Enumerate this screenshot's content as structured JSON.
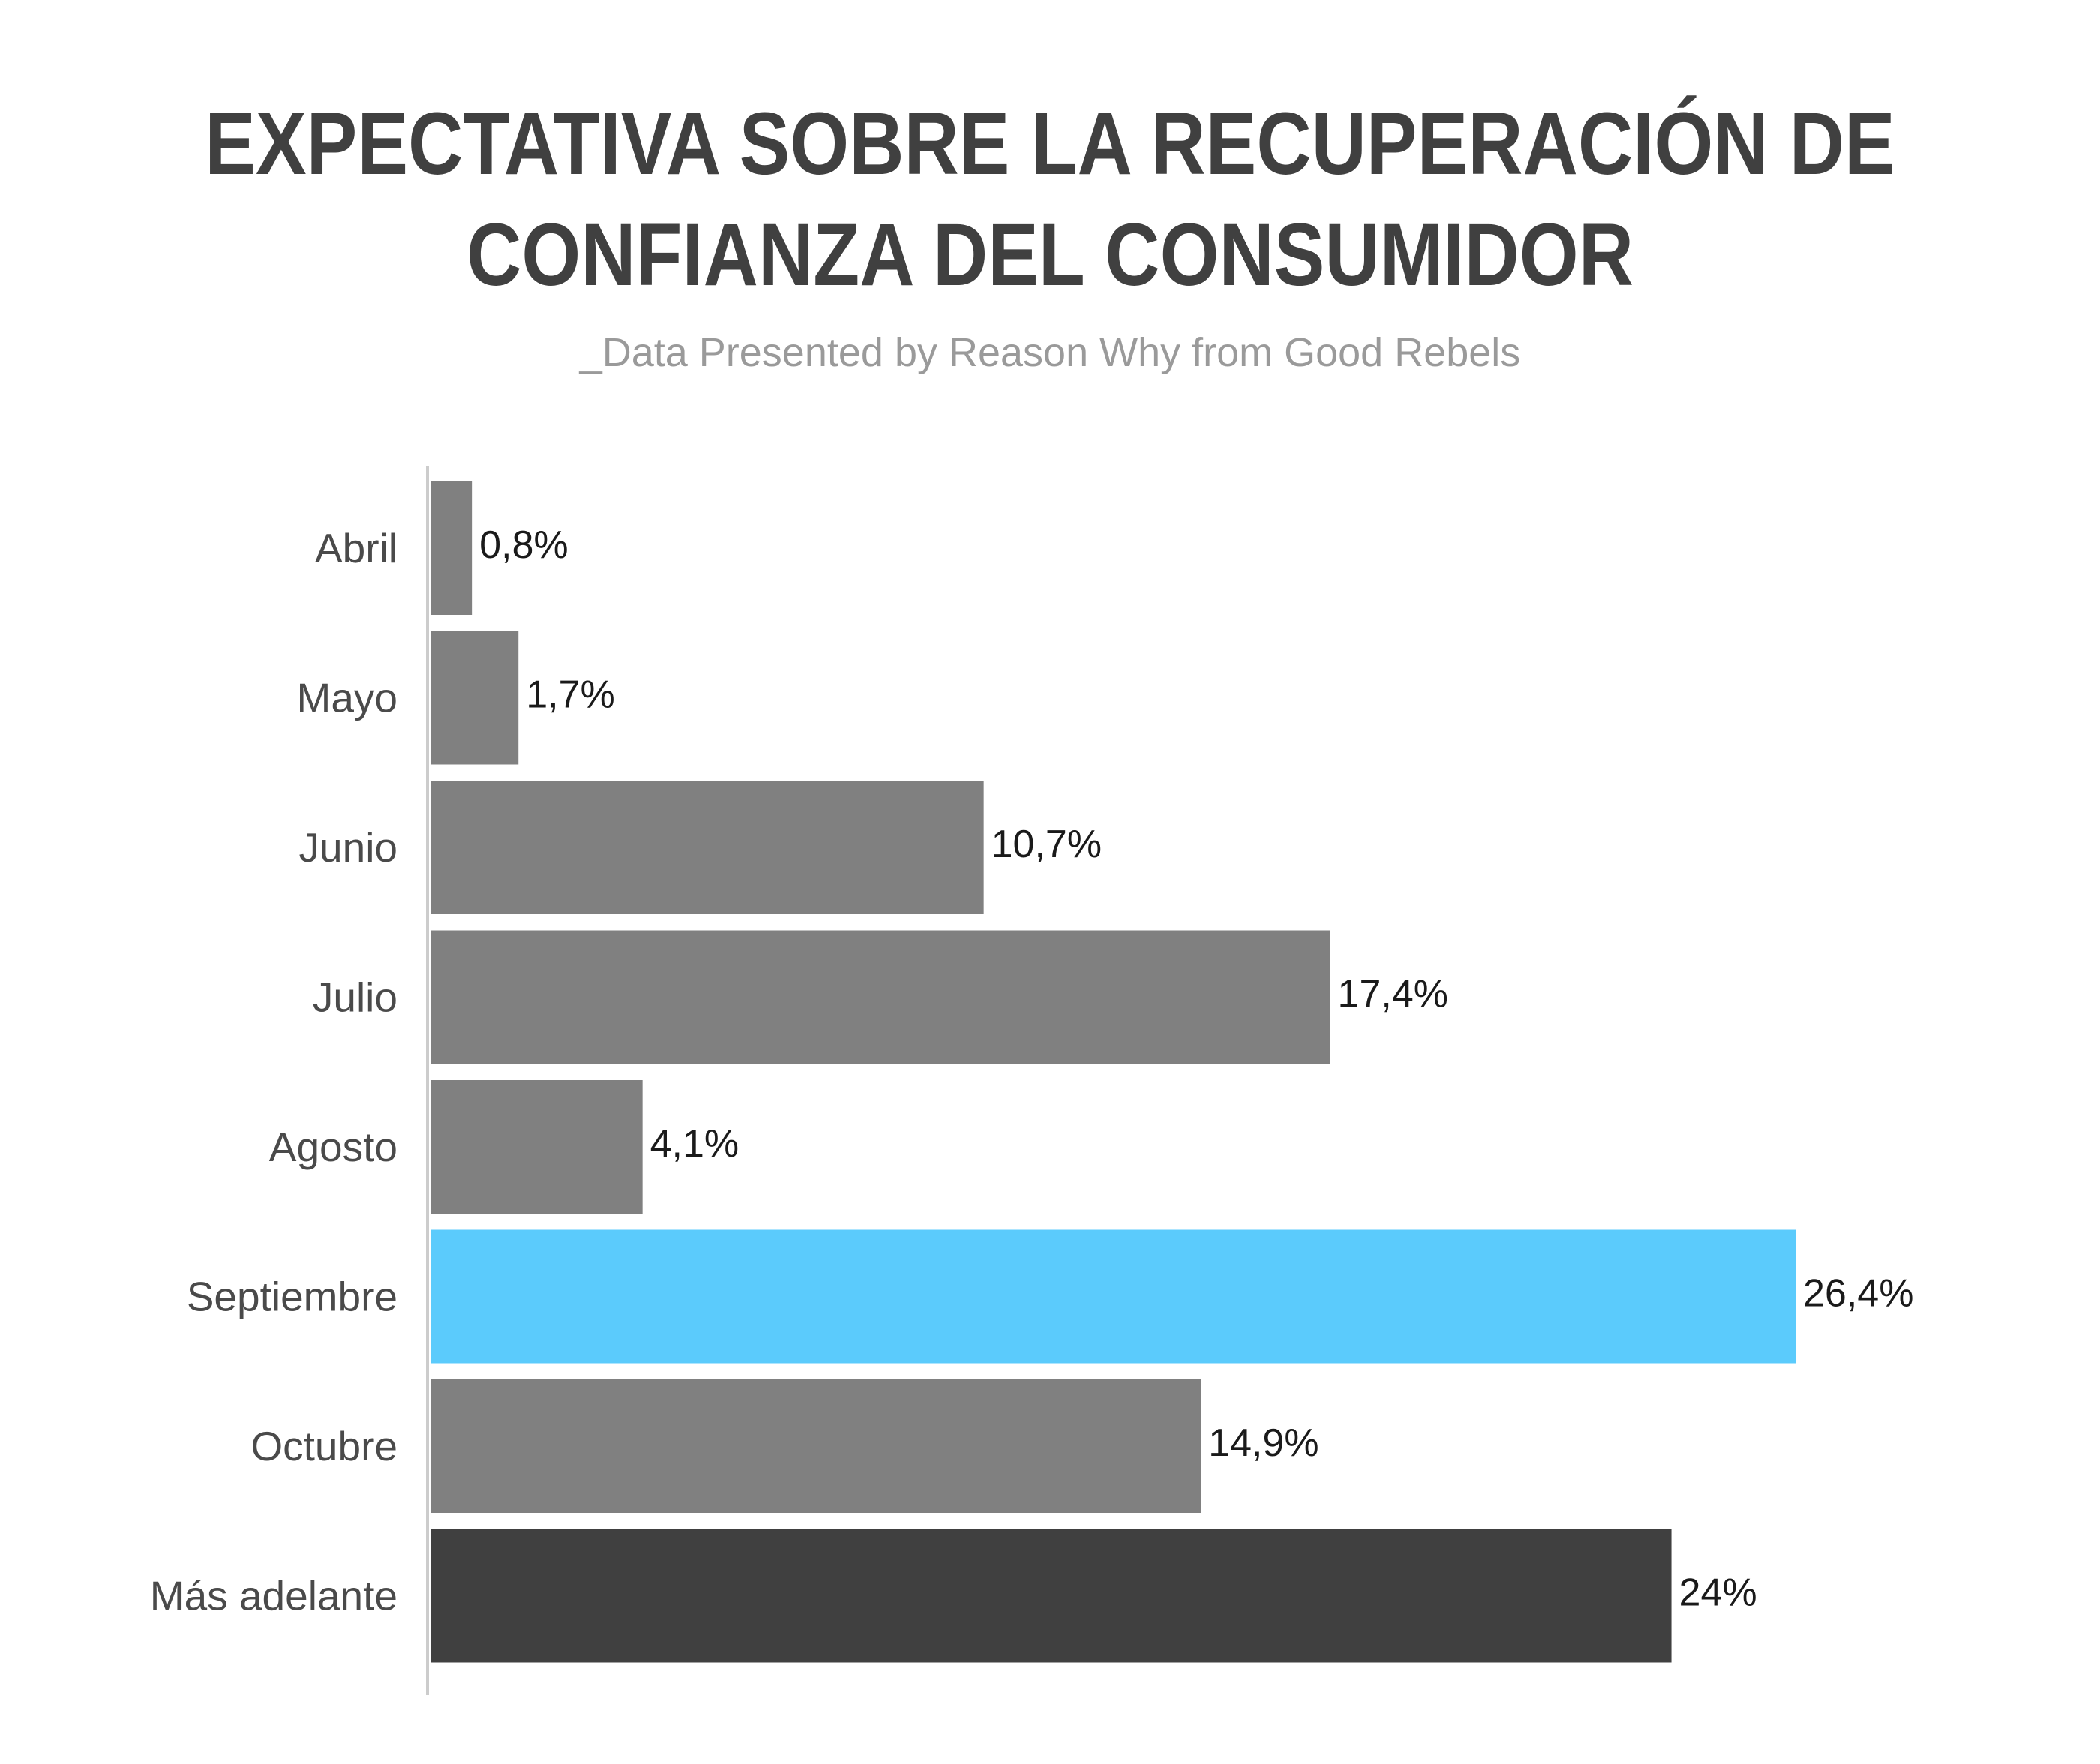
{
  "chart_data": {
    "type": "bar",
    "orientation": "horizontal",
    "title_lines": [
      "EXPECTATIVA SOBRE LA RECUPERACIÓN DE",
      "CONFIANZA DEL CONSUMIDOR"
    ],
    "subtitle": "_Data Presented by Reason Why from Good Rebels",
    "categories": [
      "Abril",
      "Mayo",
      "Junio",
      "Julio",
      "Agosto",
      "Septiembre",
      "Octubre",
      "Más adelante"
    ],
    "values": [
      0.8,
      1.7,
      10.7,
      17.4,
      4.1,
      26.4,
      14.9,
      24
    ],
    "value_labels": [
      "0,8%",
      "1,7%",
      "10,7%",
      "17,4%",
      "4,1%",
      "26,4%",
      "14,9%",
      "24%"
    ],
    "bar_colors": [
      "#808080",
      "#808080",
      "#808080",
      "#808080",
      "#808080",
      "#5bcbfc",
      "#808080",
      "#404040"
    ],
    "xlim": [
      0,
      26.4
    ],
    "grid": false,
    "legend": "none",
    "colors": {
      "default_bar": "#808080",
      "highlight_bar": "#5bcbfc",
      "last_bar": "#404040",
      "axis": "#cccccc",
      "title": "#404040",
      "subtitle": "#9a9a9a"
    }
  }
}
